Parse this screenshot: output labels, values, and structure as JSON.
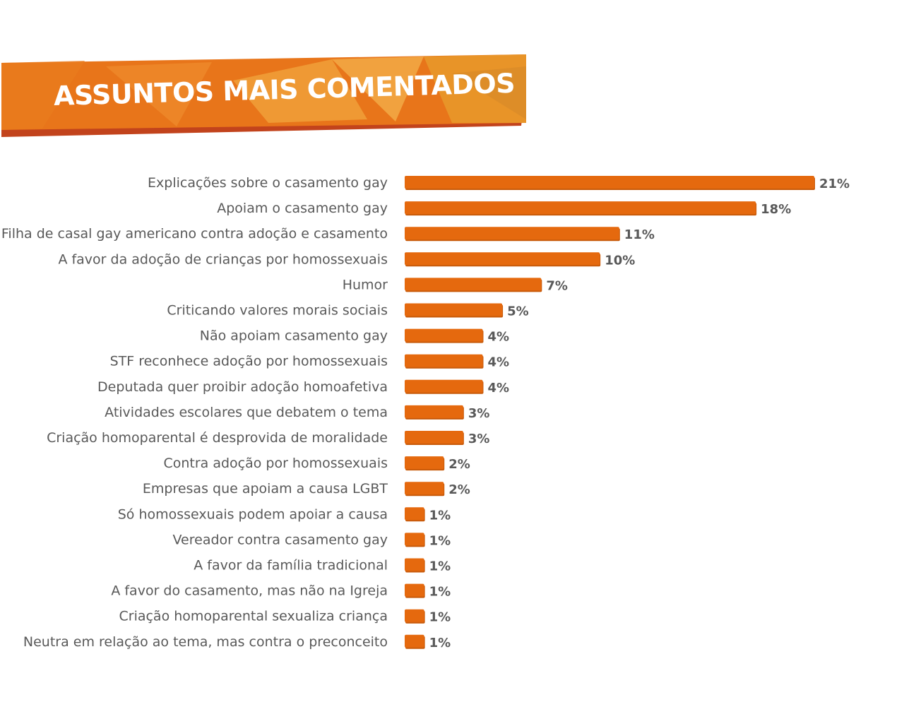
{
  "header": {
    "title": "ASSUNTOS MAIS COMENTADOS"
  },
  "colors": {
    "bar": "#E5690E",
    "bar_shadow": "#C85A0A",
    "text": "#595959",
    "banner_orange": "#E8751A",
    "banner_light": "#F0A03A",
    "banner_dark": "#C2431C"
  },
  "chart_data": {
    "type": "bar",
    "orientation": "horizontal",
    "categories": [
      "Explicações sobre o casamento gay",
      "Apoiam o casamento gay",
      "Filha de casal gay americano contra adoção e casamento",
      "A favor da adoção de crianças por homossexuais",
      "Humor",
      "Criticando valores morais sociais",
      "Não apoiam casamento gay",
      "STF reconhece adoção por homossexuais",
      "Deputada quer proibir adoção homoafetiva",
      "Atividades escolares que debatem o tema",
      "Criação homoparental é desprovida de moralidade",
      "Contra adoção por homossexuais",
      "Empresas que apoiam a causa LGBT",
      "Só homossexuais podem apoiar a causa",
      "Vereador contra casamento gay",
      "A favor da família tradicional",
      "A favor do casamento, mas não na Igreja",
      "Criação homoparental sexualiza criança",
      "Neutra em relação ao tema, mas contra o preconceito"
    ],
    "values": [
      21,
      18,
      11,
      10,
      7,
      5,
      4,
      4,
      4,
      3,
      3,
      2,
      2,
      1,
      1,
      1,
      1,
      1,
      1
    ],
    "value_labels": [
      "21%",
      "18%",
      "11%",
      "10%",
      "7%",
      "5%",
      "4%",
      "4%",
      "4%",
      "3%",
      "3%",
      "2%",
      "2%",
      "1%",
      "1%",
      "1%",
      "1%",
      "1%",
      "1%"
    ],
    "unit": "%",
    "xlim": [
      0,
      21
    ],
    "grid": false,
    "legend": "none"
  }
}
